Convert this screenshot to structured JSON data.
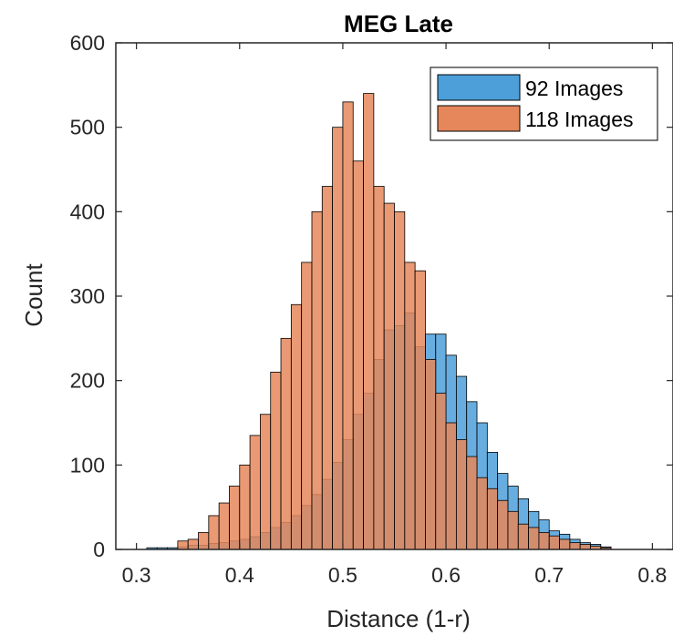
{
  "chart_data": {
    "type": "histogram",
    "title": "MEG Late",
    "xlabel": "Distance (1-r)",
    "ylabel": "Count",
    "xlim": [
      0.28,
      0.82
    ],
    "ylim": [
      0,
      600
    ],
    "xticks": [
      "0.3",
      "0.4",
      "0.5",
      "0.6",
      "0.7",
      "0.8"
    ],
    "yticks": [
      "0",
      "100",
      "200",
      "300",
      "400",
      "500",
      "600"
    ],
    "legend_position": "top-right",
    "bin_start": 0.31,
    "bin_width": 0.01,
    "series": [
      {
        "name": "92 Images",
        "color": "#0072BD",
        "fill": "#4c9fd9",
        "counts": [
          2,
          2,
          2,
          3,
          5,
          5,
          7,
          8,
          10,
          12,
          15,
          20,
          26,
          32,
          40,
          52,
          65,
          83,
          103,
          130,
          160,
          185,
          225,
          260,
          265,
          280,
          240,
          255,
          255,
          230,
          205,
          175,
          150,
          115,
          90,
          75,
          60,
          45,
          35,
          22,
          18,
          12,
          8,
          6,
          3
        ]
      },
      {
        "name": "118 Images",
        "color": "#D95319",
        "fill": "#e5875a",
        "counts": [
          0,
          0,
          0,
          10,
          12,
          20,
          40,
          55,
          75,
          100,
          135,
          160,
          210,
          250,
          290,
          340,
          400,
          430,
          500,
          530,
          460,
          540,
          430,
          410,
          400,
          340,
          330,
          225,
          185,
          150,
          130,
          110,
          85,
          72,
          58,
          45,
          30,
          26,
          20,
          16,
          12,
          8,
          6,
          4,
          2
        ]
      }
    ]
  }
}
